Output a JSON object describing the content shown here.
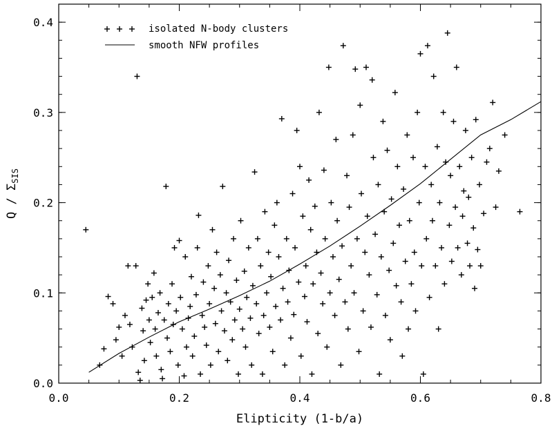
{
  "chart_data": {
    "type": "scatter",
    "xlabel": "Elipticity (1-b/a)",
    "ylabel": "Q / Σ",
    "ylabel_subscript": "SIS",
    "xlim": [
      0.0,
      0.8
    ],
    "ylim": [
      0.0,
      0.42
    ],
    "xticks": [
      "0.0",
      "0.2",
      "0.4",
      "0.6",
      "0.8"
    ],
    "yticks": [
      "0.0",
      "0.1",
      "0.2",
      "0.3",
      "0.4"
    ],
    "grid": false,
    "legend_position": "top-left",
    "series": [
      {
        "name": "isolated N-body clusters",
        "marker": "+",
        "legend_symbol": "+ + +",
        "points": [
          [
            0.045,
            0.17
          ],
          [
            0.068,
            0.02
          ],
          [
            0.075,
            0.038
          ],
          [
            0.082,
            0.096
          ],
          [
            0.09,
            0.088
          ],
          [
            0.095,
            0.048
          ],
          [
            0.1,
            0.062
          ],
          [
            0.105,
            0.03
          ],
          [
            0.11,
            0.075
          ],
          [
            0.115,
            0.13
          ],
          [
            0.118,
            0.065
          ],
          [
            0.122,
            0.04
          ],
          [
            0.128,
            0.13
          ],
          [
            0.13,
            0.34
          ],
          [
            0.132,
            0.012
          ],
          [
            0.135,
            0.003
          ],
          [
            0.138,
            0.083
          ],
          [
            0.14,
            0.058
          ],
          [
            0.142,
            0.025
          ],
          [
            0.145,
            0.092
          ],
          [
            0.148,
            0.11
          ],
          [
            0.15,
            0.07
          ],
          [
            0.152,
            0.045
          ],
          [
            0.155,
            0.095
          ],
          [
            0.158,
            0.122
          ],
          [
            0.16,
            0.06
          ],
          [
            0.162,
            0.03
          ],
          [
            0.165,
            0.078
          ],
          [
            0.168,
            0.1
          ],
          [
            0.17,
            0.015
          ],
          [
            0.172,
            0.005
          ],
          [
            0.175,
            0.07
          ],
          [
            0.178,
            0.218
          ],
          [
            0.18,
            0.05
          ],
          [
            0.182,
            0.088
          ],
          [
            0.185,
            0.035
          ],
          [
            0.188,
            0.11
          ],
          [
            0.19,
            0.065
          ],
          [
            0.192,
            0.15
          ],
          [
            0.195,
            0.08
          ],
          [
            0.198,
            0.02
          ],
          [
            0.2,
            0.158
          ],
          [
            0.202,
            0.095
          ],
          [
            0.205,
            0.06
          ],
          [
            0.208,
            0.008
          ],
          [
            0.21,
            0.14
          ],
          [
            0.212,
            0.04
          ],
          [
            0.215,
            0.072
          ],
          [
            0.218,
            0.085
          ],
          [
            0.22,
            0.118
          ],
          [
            0.222,
            0.03
          ],
          [
            0.225,
            0.052
          ],
          [
            0.228,
            0.098
          ],
          [
            0.23,
            0.15
          ],
          [
            0.232,
            0.186
          ],
          [
            0.235,
            0.01
          ],
          [
            0.238,
            0.075
          ],
          [
            0.24,
            0.112
          ],
          [
            0.242,
            0.062
          ],
          [
            0.245,
            0.042
          ],
          [
            0.248,
            0.13
          ],
          [
            0.25,
            0.088
          ],
          [
            0.252,
            0.02
          ],
          [
            0.255,
            0.17
          ],
          [
            0.258,
            0.105
          ],
          [
            0.26,
            0.066
          ],
          [
            0.262,
            0.145
          ],
          [
            0.265,
            0.035
          ],
          [
            0.268,
            0.12
          ],
          [
            0.27,
            0.08
          ],
          [
            0.272,
            0.218
          ],
          [
            0.275,
            0.058
          ],
          [
            0.278,
            0.1
          ],
          [
            0.28,
            0.025
          ],
          [
            0.282,
            0.136
          ],
          [
            0.285,
            0.09
          ],
          [
            0.288,
            0.048
          ],
          [
            0.29,
            0.16
          ],
          [
            0.292,
            0.07
          ],
          [
            0.295,
            0.114
          ],
          [
            0.298,
            0.01
          ],
          [
            0.3,
            0.082
          ],
          [
            0.302,
            0.18
          ],
          [
            0.305,
            0.06
          ],
          [
            0.308,
            0.124
          ],
          [
            0.31,
            0.04
          ],
          [
            0.312,
            0.095
          ],
          [
            0.315,
            0.15
          ],
          [
            0.318,
            0.072
          ],
          [
            0.32,
            0.02
          ],
          [
            0.322,
            0.108
          ],
          [
            0.325,
            0.234
          ],
          [
            0.328,
            0.088
          ],
          [
            0.33,
            0.16
          ],
          [
            0.332,
            0.055
          ],
          [
            0.335,
            0.13
          ],
          [
            0.338,
            0.01
          ],
          [
            0.34,
            0.075
          ],
          [
            0.342,
            0.19
          ],
          [
            0.345,
            0.1
          ],
          [
            0.348,
            0.145
          ],
          [
            0.35,
            0.062
          ],
          [
            0.352,
            0.118
          ],
          [
            0.355,
            0.035
          ],
          [
            0.358,
            0.175
          ],
          [
            0.36,
            0.085
          ],
          [
            0.362,
            0.2
          ],
          [
            0.365,
            0.14
          ],
          [
            0.368,
            0.07
          ],
          [
            0.37,
            0.293
          ],
          [
            0.372,
            0.105
          ],
          [
            0.375,
            0.02
          ],
          [
            0.378,
            0.16
          ],
          [
            0.38,
            0.09
          ],
          [
            0.382,
            0.125
          ],
          [
            0.385,
            0.05
          ],
          [
            0.388,
            0.21
          ],
          [
            0.39,
            0.076
          ],
          [
            0.392,
            0.15
          ],
          [
            0.395,
            0.28
          ],
          [
            0.398,
            0.112
          ],
          [
            0.4,
            0.24
          ],
          [
            0.402,
            0.03
          ],
          [
            0.405,
            0.185
          ],
          [
            0.408,
            0.096
          ],
          [
            0.41,
            0.13
          ],
          [
            0.412,
            0.068
          ],
          [
            0.415,
            0.225
          ],
          [
            0.418,
            0.17
          ],
          [
            0.42,
            0.01
          ],
          [
            0.422,
            0.11
          ],
          [
            0.425,
            0.196
          ],
          [
            0.428,
            0.145
          ],
          [
            0.43,
            0.055
          ],
          [
            0.432,
            0.3
          ],
          [
            0.435,
            0.122
          ],
          [
            0.438,
            0.088
          ],
          [
            0.44,
            0.236
          ],
          [
            0.442,
            0.16
          ],
          [
            0.445,
            0.04
          ],
          [
            0.448,
            0.35
          ],
          [
            0.45,
            0.1
          ],
          [
            0.452,
            0.2
          ],
          [
            0.455,
            0.14
          ],
          [
            0.458,
            0.075
          ],
          [
            0.46,
            0.27
          ],
          [
            0.462,
            0.18
          ],
          [
            0.465,
            0.115
          ],
          [
            0.468,
            0.02
          ],
          [
            0.47,
            0.152
          ],
          [
            0.472,
            0.374
          ],
          [
            0.475,
            0.09
          ],
          [
            0.478,
            0.23
          ],
          [
            0.48,
            0.06
          ],
          [
            0.482,
            0.195
          ],
          [
            0.485,
            0.13
          ],
          [
            0.488,
            0.275
          ],
          [
            0.49,
            0.1
          ],
          [
            0.492,
            0.348
          ],
          [
            0.495,
            0.16
          ],
          [
            0.498,
            0.035
          ],
          [
            0.5,
            0.308
          ],
          [
            0.502,
            0.21
          ],
          [
            0.505,
            0.08
          ],
          [
            0.508,
            0.145
          ],
          [
            0.51,
            0.35
          ],
          [
            0.512,
            0.185
          ],
          [
            0.515,
            0.12
          ],
          [
            0.518,
            0.062
          ],
          [
            0.52,
            0.336
          ],
          [
            0.522,
            0.25
          ],
          [
            0.525,
            0.165
          ],
          [
            0.528,
            0.098
          ],
          [
            0.53,
            0.22
          ],
          [
            0.532,
            0.01
          ],
          [
            0.535,
            0.14
          ],
          [
            0.538,
            0.29
          ],
          [
            0.54,
            0.19
          ],
          [
            0.542,
            0.075
          ],
          [
            0.545,
            0.258
          ],
          [
            0.548,
            0.125
          ],
          [
            0.55,
            0.048
          ],
          [
            0.552,
            0.204
          ],
          [
            0.555,
            0.155
          ],
          [
            0.558,
            0.322
          ],
          [
            0.56,
            0.108
          ],
          [
            0.562,
            0.24
          ],
          [
            0.565,
            0.175
          ],
          [
            0.568,
            0.09
          ],
          [
            0.57,
            0.03
          ],
          [
            0.572,
            0.215
          ],
          [
            0.575,
            0.135
          ],
          [
            0.578,
            0.275
          ],
          [
            0.58,
            0.06
          ],
          [
            0.582,
            0.18
          ],
          [
            0.585,
            0.11
          ],
          [
            0.588,
            0.25
          ],
          [
            0.59,
            0.145
          ],
          [
            0.592,
            0.08
          ],
          [
            0.595,
            0.3
          ],
          [
            0.598,
            0.2
          ],
          [
            0.6,
            0.365
          ],
          [
            0.602,
            0.13
          ],
          [
            0.605,
            0.01
          ],
          [
            0.608,
            0.24
          ],
          [
            0.61,
            0.16
          ],
          [
            0.612,
            0.374
          ],
          [
            0.615,
            0.095
          ],
          [
            0.618,
            0.22
          ],
          [
            0.62,
            0.18
          ],
          [
            0.622,
            0.34
          ],
          [
            0.625,
            0.13
          ],
          [
            0.628,
            0.262
          ],
          [
            0.63,
            0.06
          ],
          [
            0.632,
            0.2
          ],
          [
            0.635,
            0.15
          ],
          [
            0.638,
            0.3
          ],
          [
            0.64,
            0.11
          ],
          [
            0.642,
            0.245
          ],
          [
            0.645,
            0.388
          ],
          [
            0.648,
            0.175
          ],
          [
            0.65,
            0.23
          ],
          [
            0.652,
            0.135
          ],
          [
            0.655,
            0.29
          ],
          [
            0.658,
            0.195
          ],
          [
            0.66,
            0.35
          ],
          [
            0.662,
            0.15
          ],
          [
            0.665,
            0.24
          ],
          [
            0.668,
            0.12
          ],
          [
            0.67,
            0.185
          ],
          [
            0.672,
            0.213
          ],
          [
            0.675,
            0.28
          ],
          [
            0.678,
            0.155
          ],
          [
            0.68,
            0.206
          ],
          [
            0.682,
            0.13
          ],
          [
            0.685,
            0.25
          ],
          [
            0.688,
            0.172
          ],
          [
            0.69,
            0.105
          ],
          [
            0.692,
            0.292
          ],
          [
            0.695,
            0.148
          ],
          [
            0.698,
            0.22
          ],
          [
            0.7,
            0.13
          ],
          [
            0.705,
            0.188
          ],
          [
            0.71,
            0.245
          ],
          [
            0.715,
            0.26
          ],
          [
            0.72,
            0.311
          ],
          [
            0.725,
            0.195
          ],
          [
            0.73,
            0.235
          ],
          [
            0.74,
            0.275
          ],
          [
            0.765,
            0.19
          ]
        ]
      },
      {
        "name": "smooth NFW profiles",
        "type": "line",
        "legend_symbol": "line",
        "points": [
          [
            0.05,
            0.012
          ],
          [
            0.1,
            0.033
          ],
          [
            0.15,
            0.051
          ],
          [
            0.2,
            0.068
          ],
          [
            0.25,
            0.082
          ],
          [
            0.3,
            0.097
          ],
          [
            0.35,
            0.113
          ],
          [
            0.4,
            0.132
          ],
          [
            0.45,
            0.152
          ],
          [
            0.5,
            0.174
          ],
          [
            0.55,
            0.197
          ],
          [
            0.6,
            0.221
          ],
          [
            0.65,
            0.248
          ],
          [
            0.7,
            0.275
          ],
          [
            0.75,
            0.292
          ],
          [
            0.8,
            0.312
          ]
        ]
      }
    ]
  }
}
